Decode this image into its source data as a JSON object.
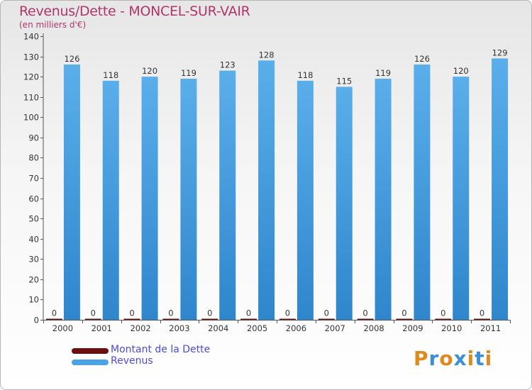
{
  "header": {
    "title": "Revenus/Dette - MONCEL-SUR-VAIR",
    "subtitle": "(en milliers d'€)"
  },
  "legend": {
    "items": [
      {
        "label": "Montant de la Dette",
        "color": "#6b0f0f"
      },
      {
        "label": "Revenus",
        "color": "#4aa3e6"
      }
    ]
  },
  "logo": {
    "text": "Proxiti"
  },
  "chart_data": {
    "type": "bar",
    "title": "Revenus/Dette - MONCEL-SUR-VAIR",
    "ylabel": "(en milliers d'€)",
    "xlabel": "",
    "ylim": [
      0,
      140
    ],
    "ytick_step": 10,
    "grid": false,
    "categories": [
      "2000",
      "2001",
      "2002",
      "2003",
      "2004",
      "2005",
      "2006",
      "2007",
      "2008",
      "2009",
      "2010",
      "2011"
    ],
    "series": [
      {
        "name": "Montant de la Dette",
        "color": "#6b0f0f",
        "values": [
          0,
          0,
          0,
          0,
          0,
          0,
          0,
          0,
          0,
          0,
          0,
          0
        ]
      },
      {
        "name": "Revenus",
        "color": "#4aa3e6",
        "values": [
          126,
          118,
          120,
          119,
          123,
          128,
          118,
          115,
          119,
          126,
          120,
          129
        ]
      }
    ]
  }
}
